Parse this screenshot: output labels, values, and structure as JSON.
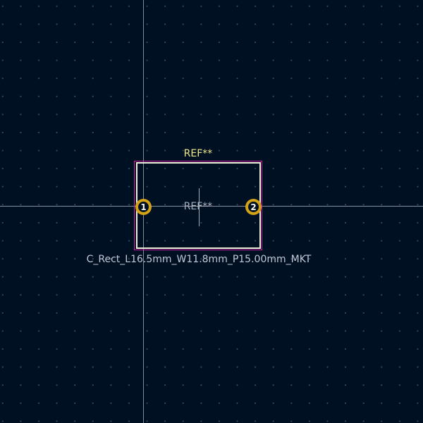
{
  "footprint": {
    "reference_silkscreen": "REF**",
    "reference_fab": "REF**",
    "value": "C_Rect_L16.5mm_W11.8mm_P15.00mm_MKT"
  },
  "pads": [
    {
      "number": "1"
    },
    {
      "number": "2"
    }
  ],
  "colors": {
    "background": "#001023",
    "grid_dot": "#3b4b63",
    "crosshair": "#9aa3b0",
    "courtyard": "#d020a8",
    "silkscreen": "#f2eddc",
    "pad": "#d3a216",
    "reference_text": "#f0e68c",
    "value_text": "#c2c8d6"
  }
}
